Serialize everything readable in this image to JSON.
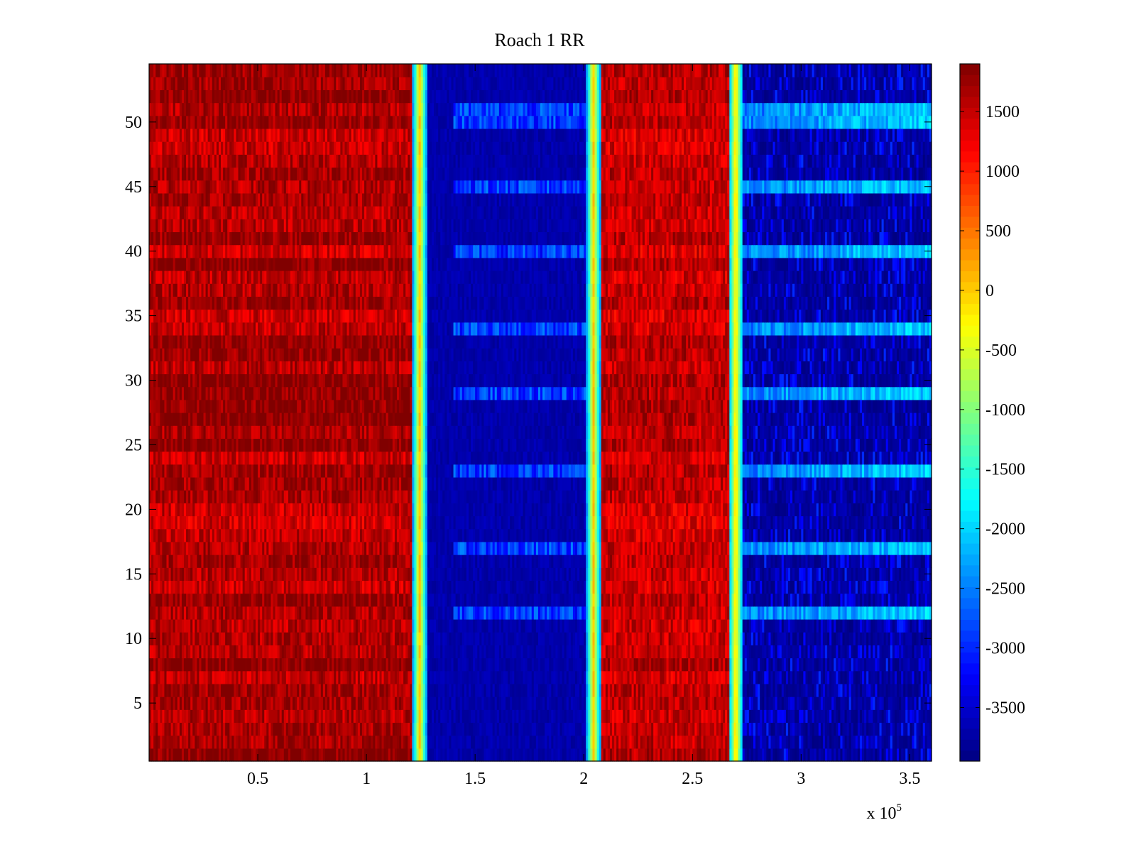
{
  "chart_data": {
    "type": "heatmap",
    "title": "Roach 1 RR",
    "xlabel": "",
    "ylabel": "",
    "x_multiplier_label": {
      "prefix": "x 10",
      "exponent": "5"
    },
    "xlim": [
      0,
      360000
    ],
    "ylim": [
      0.5,
      54.5
    ],
    "x_ticks": [
      {
        "value": 50000,
        "label": "0.5"
      },
      {
        "value": 100000,
        "label": "1"
      },
      {
        "value": 150000,
        "label": "1.5"
      },
      {
        "value": 200000,
        "label": "2"
      },
      {
        "value": 250000,
        "label": "2.5"
      },
      {
        "value": 300000,
        "label": "3"
      },
      {
        "value": 350000,
        "label": "3.5"
      }
    ],
    "y_ticks": [
      {
        "value": 5,
        "label": "5"
      },
      {
        "value": 10,
        "label": "10"
      },
      {
        "value": 15,
        "label": "15"
      },
      {
        "value": 20,
        "label": "20"
      },
      {
        "value": 25,
        "label": "25"
      },
      {
        "value": 30,
        "label": "30"
      },
      {
        "value": 35,
        "label": "35"
      },
      {
        "value": 40,
        "label": "40"
      },
      {
        "value": 45,
        "label": "45"
      },
      {
        "value": 50,
        "label": "50"
      }
    ],
    "rows": 54,
    "colorbar": {
      "colormap": "jet",
      "range": [
        -3950,
        1900
      ],
      "ticks": [
        {
          "value": 1500,
          "label": "1500"
        },
        {
          "value": 1000,
          "label": "1000"
        },
        {
          "value": 500,
          "label": "500"
        },
        {
          "value": 0,
          "label": "0"
        },
        {
          "value": -500,
          "label": "-500"
        },
        {
          "value": -1000,
          "label": "-1000"
        },
        {
          "value": -1500,
          "label": "-1500"
        },
        {
          "value": -2000,
          "label": "-2000"
        },
        {
          "value": -2500,
          "label": "-2500"
        },
        {
          "value": -3000,
          "label": "-3000"
        },
        {
          "value": -3500,
          "label": "-3500"
        }
      ]
    },
    "value_regions": [
      {
        "x_start": 0,
        "x_end": 123000,
        "approx_value": 1650
      },
      {
        "x_start": 126000,
        "x_end": 201000,
        "approx_value": -3700
      },
      {
        "x_start": 208000,
        "x_end": 267000,
        "approx_value": 1500
      },
      {
        "x_start": 273000,
        "x_end": 360000,
        "approx_value": -3500
      }
    ],
    "transitions": [
      {
        "x": 124500,
        "peak_value": 0
      },
      {
        "x": 204500,
        "peak_value": 0
      },
      {
        "x": 270000,
        "peak_value": 0
      }
    ],
    "bright_rows_in_low_regions": [
      12,
      17,
      23,
      29,
      34,
      40,
      45,
      50,
      51
    ]
  }
}
